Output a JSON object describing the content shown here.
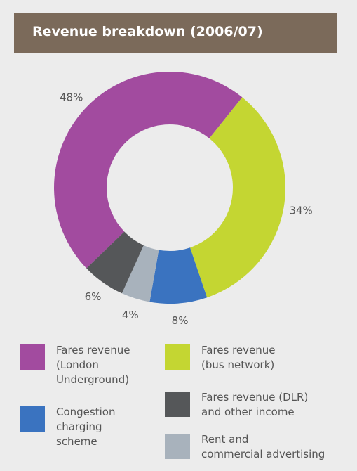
{
  "chart_data": {
    "type": "donut",
    "title": "Revenue breakdown (2006/07)",
    "categories": [
      "Fares revenue\n(London\nUnderground)",
      "Fares revenue\n(bus network)",
      "Congestion\ncharging\nscheme",
      "Rent and\ncommercial advertising",
      "Fares revenue (DLR)\nand other income"
    ],
    "values": [
      48,
      34,
      8,
      4,
      6
    ],
    "value_labels": [
      "48%",
      "34%",
      "8%",
      "4%",
      "6%"
    ],
    "colors": [
      "#a24b9f",
      "#c4d632",
      "#3a73c0",
      "#a8b2bc",
      "#555759"
    ]
  }
}
